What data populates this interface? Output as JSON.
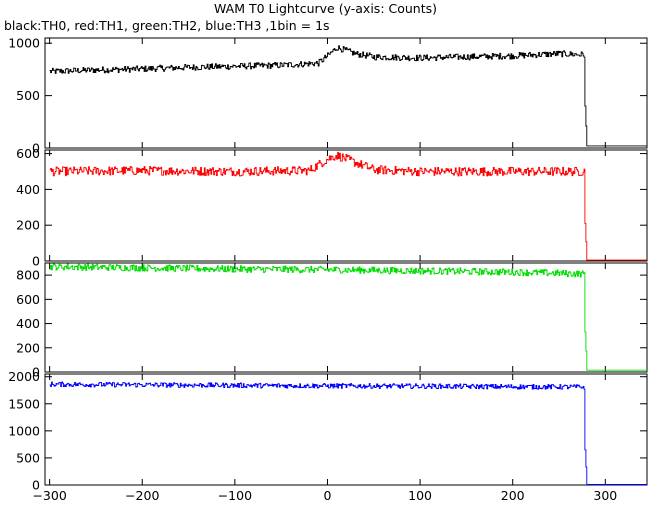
{
  "chart_data": {
    "type": "line",
    "title": "WAM T0 Lightcurve (y-axis: Counts)",
    "subtitle": "black:TH0, red:TH1, green:TH2, blue:TH3 ,1bin = 1s",
    "xlim": [
      -305,
      345
    ],
    "x_ticks": [
      -300,
      -200,
      -100,
      0,
      100,
      200,
      300
    ],
    "x_tick_labels": [
      "−300",
      "−200",
      "−100",
      "0",
      "100",
      "200",
      "300"
    ],
    "bin_seconds": 1,
    "series": [
      {
        "name": "TH0",
        "color": "#000000",
        "ylim": [
          0,
          1050
        ],
        "y_ticks": [
          0,
          500,
          1000
        ],
        "y_tick_labels": [
          "0",
          "500",
          "1000"
        ],
        "x": [
          -300,
          -250,
          -200,
          -150,
          -100,
          -50,
          -10,
          0,
          10,
          30,
          50,
          100,
          150,
          200,
          250,
          277,
          278,
          280,
          345
        ],
        "y": [
          730,
          745,
          755,
          770,
          780,
          790,
          810,
          880,
          960,
          900,
          870,
          860,
          870,
          880,
          900,
          890,
          400,
          20,
          20
        ],
        "noise": 30
      },
      {
        "name": "TH1",
        "color": "#ff0000",
        "ylim": [
          0,
          620
        ],
        "y_ticks": [
          0,
          200,
          400,
          600
        ],
        "y_tick_labels": [
          "0",
          "200",
          "400",
          "600"
        ],
        "x": [
          -300,
          -200,
          -100,
          -20,
          0,
          10,
          20,
          50,
          100,
          200,
          277,
          278,
          280,
          345
        ],
        "y": [
          500,
          505,
          500,
          505,
          570,
          590,
          570,
          510,
          500,
          500,
          500,
          210,
          5,
          5
        ],
        "noise": 25
      },
      {
        "name": "TH2",
        "color": "#00dd00",
        "ylim": [
          0,
          900
        ],
        "y_ticks": [
          0,
          200,
          400,
          600,
          800
        ],
        "y_tick_labels": [
          "0",
          "200",
          "400",
          "600",
          "800"
        ],
        "x": [
          -300,
          -200,
          -100,
          0,
          100,
          200,
          250,
          277,
          278,
          280,
          345
        ],
        "y": [
          870,
          860,
          850,
          845,
          835,
          825,
          815,
          810,
          330,
          15,
          15
        ],
        "noise": 28
      },
      {
        "name": "TH3",
        "color": "#0000ff",
        "ylim": [
          0,
          2050
        ],
        "y_ticks": [
          0,
          500,
          1000,
          1500,
          2000
        ],
        "y_tick_labels": [
          "0",
          "500",
          "1000",
          "1500",
          "2000"
        ],
        "x": [
          -300,
          -200,
          -100,
          0,
          100,
          200,
          277,
          278,
          280,
          345
        ],
        "y": [
          1860,
          1850,
          1840,
          1830,
          1825,
          1815,
          1810,
          650,
          10,
          10
        ],
        "noise": 45
      }
    ]
  }
}
